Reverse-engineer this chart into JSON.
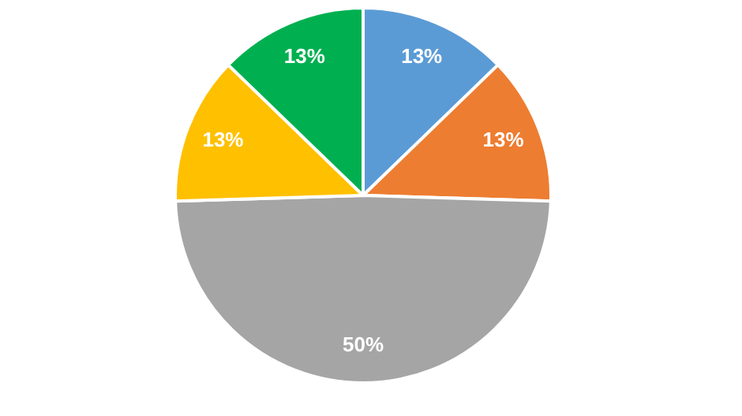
{
  "chart_data": {
    "type": "pie",
    "categories": [
      null,
      null,
      null,
      null,
      null
    ],
    "values": [
      13,
      13,
      50,
      13,
      13
    ],
    "colors": [
      "#5b9bd5",
      "#ed7d31",
      "#a5a5a5",
      "#ffc000",
      "#00b050"
    ],
    "value_labels": [
      "13%",
      "13%",
      "50%",
      "13%",
      "13%"
    ],
    "legend": false
  }
}
